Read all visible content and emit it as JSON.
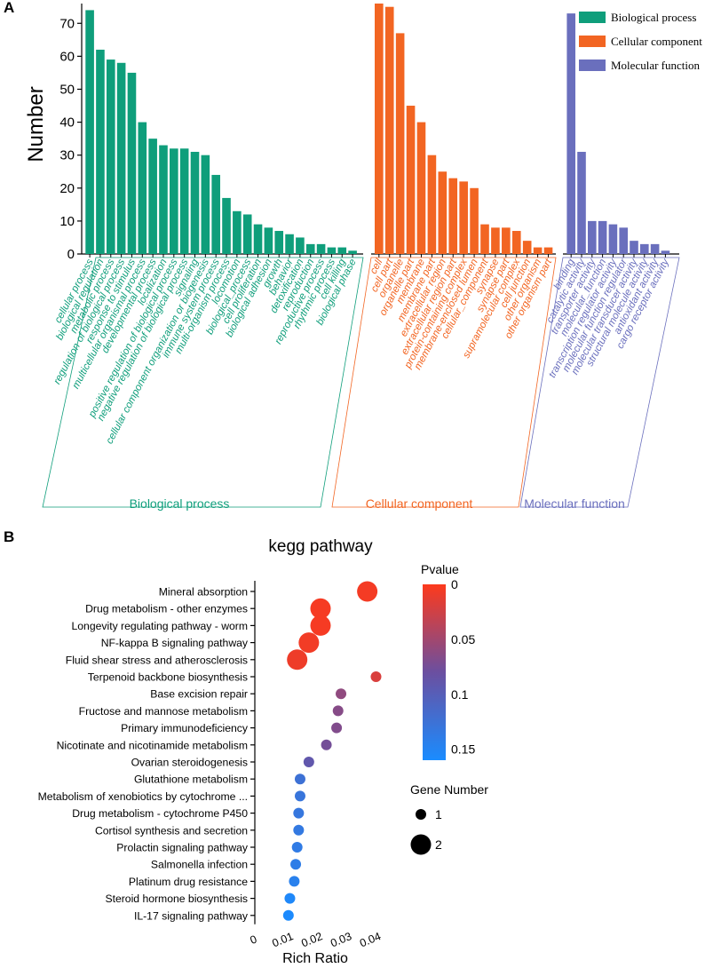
{
  "panel_a": {
    "label": "A",
    "chart_data": {
      "type": "bar",
      "ylabel": "Number",
      "ylim": [
        0,
        76
      ],
      "yticks": [
        0,
        10,
        20,
        30,
        40,
        50,
        60,
        70
      ],
      "series": [
        {
          "name": "Biological process",
          "color": "#0f9e7b",
          "categories": [
            "cellular process",
            "biological regulation",
            "metabolic process",
            "regulation of biological process",
            "response to stimulus",
            "multicellular organismal process",
            "developmental process",
            "localization",
            "positive regulation of biological process",
            "negative regulation of biological process",
            "signaling",
            "cellular component organization or biogenesis",
            "immune system process",
            "multi-organism process",
            "locomotion",
            "biological_process",
            "cell proliferation",
            "biological adhesion",
            "growth",
            "behavior",
            "detoxification",
            "reproduction",
            "reproductive process",
            "rhythmic process",
            "cell killing",
            "biological phase"
          ],
          "values": [
            74,
            62,
            59,
            58,
            55,
            40,
            35,
            33,
            32,
            32,
            31,
            30,
            24,
            17,
            13,
            12,
            9,
            8,
            7,
            6,
            5,
            3,
            3,
            2,
            2,
            1
          ]
        },
        {
          "name": "Cellular component",
          "color": "#f26522",
          "categories": [
            "cell",
            "cell part",
            "organelle",
            "organelle part",
            "membrane",
            "membrane part",
            "extracellular region",
            "extracellular region part",
            "protein-containing complex",
            "membrane-enclosed lumen",
            "cellular_component",
            "synapse",
            "synapse part",
            "supramolecular complex",
            "cell junction",
            "other organism",
            "other organism part"
          ],
          "values": [
            76,
            75,
            67,
            45,
            40,
            30,
            25,
            23,
            22,
            20,
            9,
            8,
            8,
            7,
            4,
            2,
            2
          ]
        },
        {
          "name": "Molecular function",
          "color": "#6a6fbd",
          "categories": [
            "binding",
            "catalytic activity",
            "transporter activity",
            "molecular_function",
            "transcription regulator activity",
            "molecular function regulator",
            "molecular transducer activity",
            "structural molecule activity",
            "antioxidant activity",
            "cargo receptor activity"
          ],
          "values": [
            73,
            31,
            10,
            10,
            9,
            8,
            4,
            3,
            3,
            1
          ]
        }
      ],
      "legend": [
        "Biological process",
        "Cellular component",
        "Molecular function"
      ],
      "legend_position": "top-right"
    }
  },
  "panel_b": {
    "label": "B",
    "chart_data": {
      "type": "scatter",
      "title": "kegg pathway",
      "xlabel": "Rich Ratio",
      "xlim": [
        0,
        0.045
      ],
      "xticks": [
        "0",
        "0.01",
        "0.02",
        "0.03",
        "0.04"
      ],
      "xtick_values": [
        0,
        0.01,
        0.02,
        0.03,
        0.04
      ],
      "pathways": [
        "Mineral absorption",
        "Drug metabolism - other enzymes",
        "Longevity regulating pathway - worm",
        "NF-kappa B signaling pathway",
        "Fluid shear stress and atherosclerosis",
        "Terpenoid backbone biosynthesis",
        "Base excision repair",
        "Fructose and mannose metabolism",
        "Primary immunodeficiency",
        "Nicotinate and nicotinamide metabolism",
        "Ovarian steroidogenesis",
        "Glutathione metabolism",
        "Metabolism of xenobiotics by cytochrome ...",
        "Drug metabolism - cytochrome P450",
        "Cortisol synthesis and secretion",
        "Prolactin signaling pathway",
        "Salmonella infection",
        "Platinum drug resistance",
        "Steroid hormone biosynthesis",
        "IL-17 signaling pathway"
      ],
      "rich_ratio": [
        0.0385,
        0.0225,
        0.0225,
        0.0185,
        0.0145,
        0.0415,
        0.0295,
        0.0285,
        0.028,
        0.0245,
        0.0185,
        0.0155,
        0.0155,
        0.015,
        0.015,
        0.0145,
        0.014,
        0.0135,
        0.012,
        0.0115
      ],
      "gene_number": [
        2,
        2,
        2,
        2,
        2,
        1,
        1,
        1,
        1,
        1,
        1,
        1,
        1,
        1,
        1,
        1,
        1,
        1,
        1,
        1
      ],
      "pvalue": [
        0.005,
        0.004,
        0.004,
        0.006,
        0.008,
        0.02,
        0.06,
        0.065,
        0.068,
        0.075,
        0.09,
        0.125,
        0.13,
        0.132,
        0.135,
        0.138,
        0.14,
        0.145,
        0.155,
        0.158
      ],
      "color_scale": {
        "title": "Pvalue",
        "ticks": [
          "0",
          "0.05",
          "0.1",
          "0.15"
        ],
        "tick_values": [
          0,
          0.05,
          0.1,
          0.15
        ],
        "max": 0.16,
        "high_color": "#fd3a1c",
        "mid_color": "#6b4fa0",
        "low_color": "#1a8cff"
      },
      "size_legend": {
        "title": "Gene Number",
        "values": [
          "1",
          "2"
        ]
      }
    }
  },
  "group_labels": [
    "Biological process",
    "Cellular component",
    "Molecular function"
  ]
}
